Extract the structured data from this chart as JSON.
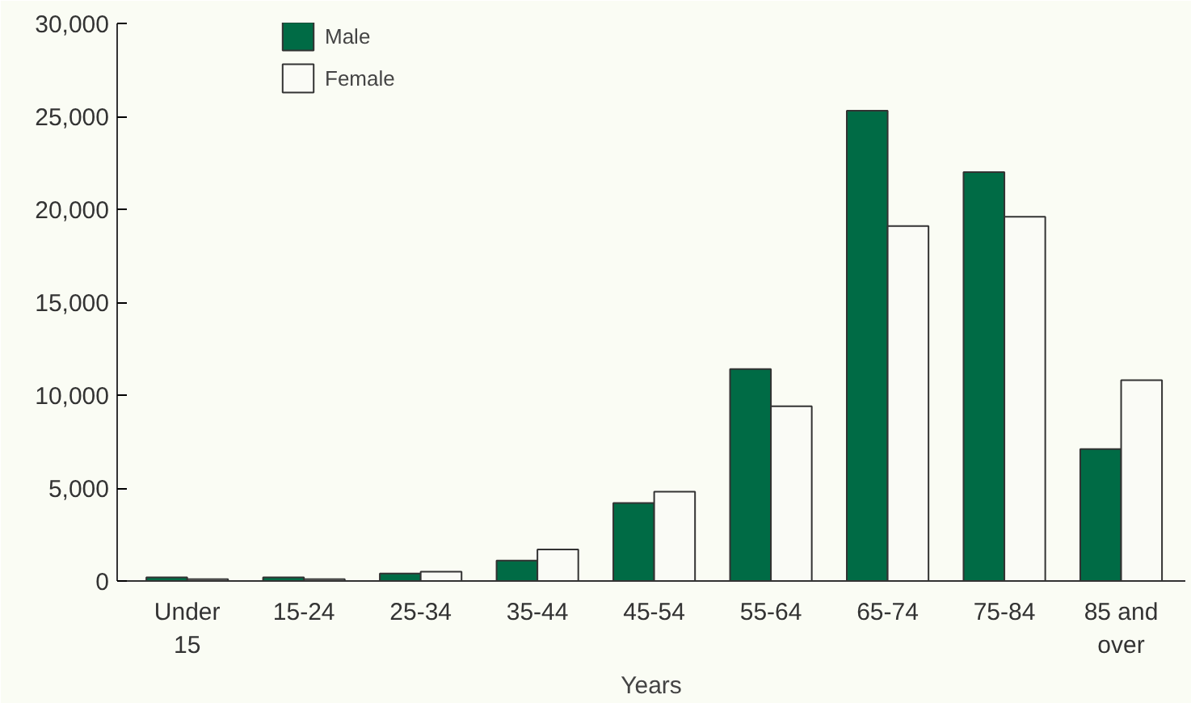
{
  "chart_data": {
    "type": "bar",
    "xlabel": "Years",
    "categories": [
      "Under 15",
      "15-24",
      "25-34",
      "35-44",
      "45-54",
      "55-64",
      "65-74",
      "75-84",
      "85 and over"
    ],
    "series": [
      {
        "name": "Male",
        "color": "#006b45",
        "values": [
          200,
          200,
          400,
          1100,
          4200,
          11400,
          25300,
          22000,
          7100
        ]
      },
      {
        "name": "Female",
        "color": "#fafbf6",
        "values": [
          100,
          100,
          500,
          1700,
          4800,
          9400,
          19100,
          19600,
          10800
        ]
      }
    ],
    "ylim": [
      0,
      30000
    ],
    "yticks": [
      {
        "value": 0,
        "label": "0"
      },
      {
        "value": 5000,
        "label": "5,000"
      },
      {
        "value": 10000,
        "label": "10,000"
      },
      {
        "value": 15000,
        "label": "15,000"
      },
      {
        "value": 20000,
        "label": "20,000"
      },
      {
        "value": 25000,
        "label": "25,000"
      },
      {
        "value": 30000,
        "label": "30,000"
      }
    ],
    "grid": false,
    "legend": "top left"
  }
}
